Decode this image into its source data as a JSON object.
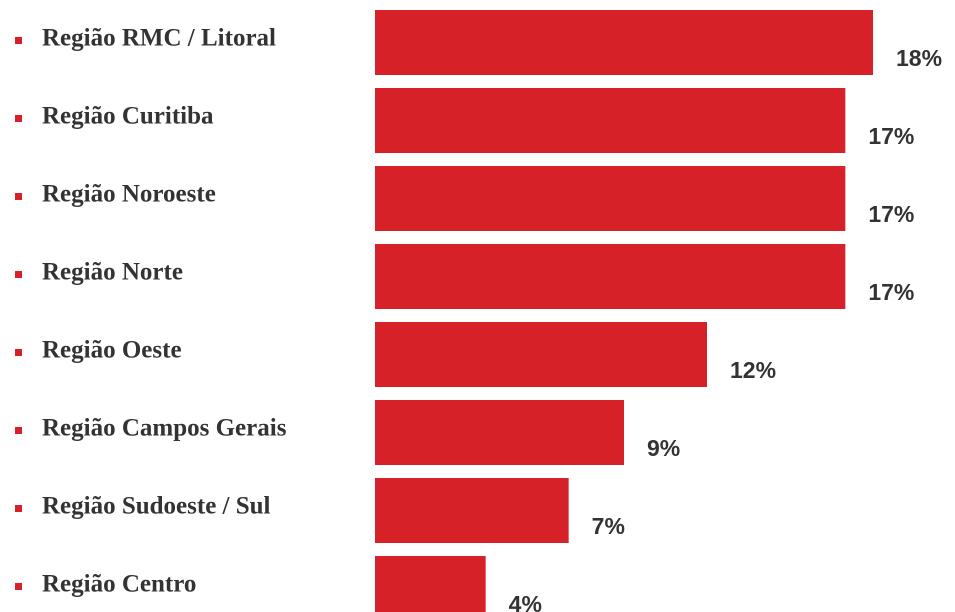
{
  "chart_data": {
    "type": "bar",
    "orientation": "horizontal",
    "categories": [
      "Região RMC / Litoral",
      "Região Curitiba",
      "Região Noroeste",
      "Região Norte",
      "Região Oeste",
      "Região Campos Gerais",
      "Região Sudoeste / Sul",
      "Região Centro"
    ],
    "values": [
      18,
      17,
      17,
      17,
      12,
      9,
      7,
      4
    ],
    "value_labels": [
      "18%",
      "17%",
      "17%",
      "17%",
      "12%",
      "9%",
      "7%",
      "4%"
    ],
    "color": "#d62128"
  }
}
